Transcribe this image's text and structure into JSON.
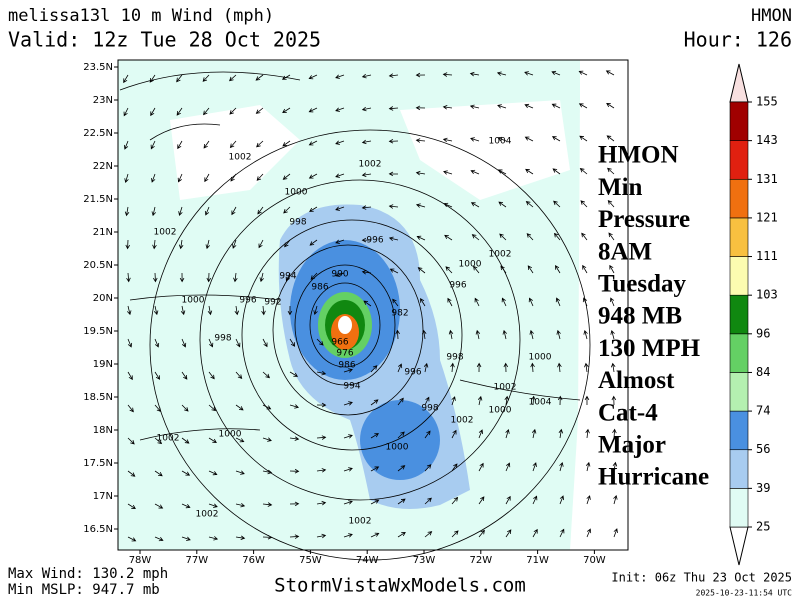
{
  "header": {
    "title": "melissa13l 10 m Wind (mph)",
    "model": "HMON",
    "valid": "Valid: 12z Tue 28 Oct 2025",
    "hour": "Hour: 126"
  },
  "map": {
    "lat_labels": [
      "23.5N",
      "23N",
      "22.5N",
      "22N",
      "21.5N",
      "21N",
      "20.5N",
      "20N",
      "19.5N",
      "19N",
      "18.5N",
      "18N",
      "17.5N",
      "17N",
      "16.5N"
    ],
    "lon_labels": [
      "78W",
      "77W",
      "76W",
      "75W",
      "74W",
      "73W",
      "72W",
      "71W",
      "70W"
    ],
    "isobar_labels": [
      "1002",
      "1002",
      "1004",
      "1000",
      "1002",
      "998",
      "996",
      "1002",
      "994",
      "990",
      "1000",
      "986",
      "996",
      "1000",
      "996",
      "992",
      "982",
      "998",
      "998",
      "1000",
      "996",
      "994",
      "1002",
      "1004",
      "998",
      "1000",
      "1002",
      "1002",
      "1000",
      "1000",
      "1002",
      "1002",
      "966",
      "976",
      "986"
    ]
  },
  "annotation": [
    "HMON",
    "Min",
    "Pressure",
    "8AM",
    "Tuesday",
    "948 MB",
    "130 MPH",
    "Almost",
    "Cat-4",
    "Major",
    "Hurricane"
  ],
  "colorbar": {
    "ticks": [
      25,
      39,
      56,
      74,
      84,
      96,
      103,
      111,
      121,
      131,
      143,
      155
    ],
    "colors": [
      "#e0fcf4",
      "#a8ccf0",
      "#4a90e0",
      "#b4f0b0",
      "#64d064",
      "#108810",
      "#fcfcb0",
      "#f8c040",
      "#f07010",
      "#e02010",
      "#a00000"
    ],
    "under_color": "#ffffff",
    "over_color": "#f8e0e0"
  },
  "footer": {
    "max_wind": "Max Wind: 130.2 mph",
    "min_mslp": "Min MSLP: 947.7 mb",
    "site": "StormVistaWxModels.com",
    "init": "Init: 06z Thu 23 Oct 2025",
    "stamp": "2025-10-23-11:54 UTC"
  }
}
